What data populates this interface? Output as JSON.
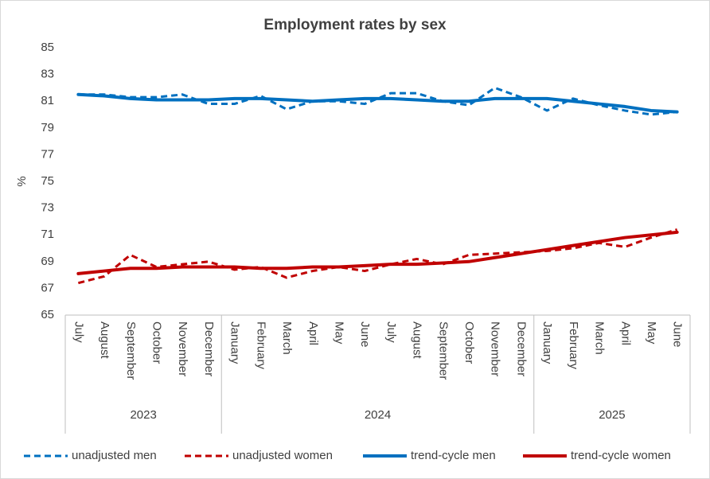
{
  "chart_data": {
    "type": "line",
    "title": "Employment rates by sex",
    "y_label": "%",
    "categories": [
      "July",
      "August",
      "September",
      "October",
      "November",
      "December",
      "January",
      "February",
      "March",
      "April",
      "May",
      "June",
      "July",
      "August",
      "September",
      "October",
      "November",
      "December",
      "January",
      "February",
      "March",
      "April",
      "May",
      "June"
    ],
    "category_groups": [
      {
        "label": "2023",
        "count": 6
      },
      {
        "label": "2024",
        "count": 12
      },
      {
        "label": "2025",
        "count": 6
      }
    ],
    "series": [
      {
        "name": "unadjusted men",
        "color": "#0070c0",
        "dashed": true,
        "values": [
          81.5,
          81.5,
          81.3,
          81.3,
          81.5,
          80.8,
          80.8,
          81.4,
          80.4,
          81.0,
          81.0,
          80.8,
          81.6,
          81.6,
          81.0,
          80.7,
          82.0,
          81.3,
          80.3,
          81.2,
          80.7,
          80.3,
          80.0,
          80.2
        ]
      },
      {
        "name": "unadjusted women",
        "color": "#c00000",
        "dashed": true,
        "values": [
          67.4,
          67.9,
          69.5,
          68.6,
          68.8,
          69.0,
          68.4,
          68.6,
          67.8,
          68.3,
          68.6,
          68.3,
          68.8,
          69.2,
          68.8,
          69.5,
          69.6,
          69.7,
          69.8,
          70.0,
          70.4,
          70.1,
          70.8,
          71.4
        ]
      },
      {
        "name": "trend-cycle men",
        "color": "#0070c0",
        "dashed": false,
        "values": [
          81.5,
          81.4,
          81.2,
          81.1,
          81.1,
          81.1,
          81.2,
          81.2,
          81.1,
          81.0,
          81.1,
          81.2,
          81.2,
          81.1,
          81.0,
          81.0,
          81.2,
          81.2,
          81.2,
          81.0,
          80.8,
          80.6,
          80.3,
          80.2
        ]
      },
      {
        "name": "trend-cycle women",
        "color": "#c00000",
        "dashed": false,
        "values": [
          68.1,
          68.3,
          68.5,
          68.5,
          68.6,
          68.6,
          68.6,
          68.5,
          68.5,
          68.6,
          68.6,
          68.7,
          68.8,
          68.8,
          68.9,
          69.0,
          69.3,
          69.6,
          69.9,
          70.2,
          70.5,
          70.8,
          71.0,
          71.2
        ]
      }
    ],
    "ylim": [
      65,
      85
    ],
    "yticks": [
      65,
      67,
      69,
      71,
      73,
      75,
      77,
      79,
      81,
      83,
      85
    ],
    "grid": false,
    "legend": "bottom"
  }
}
